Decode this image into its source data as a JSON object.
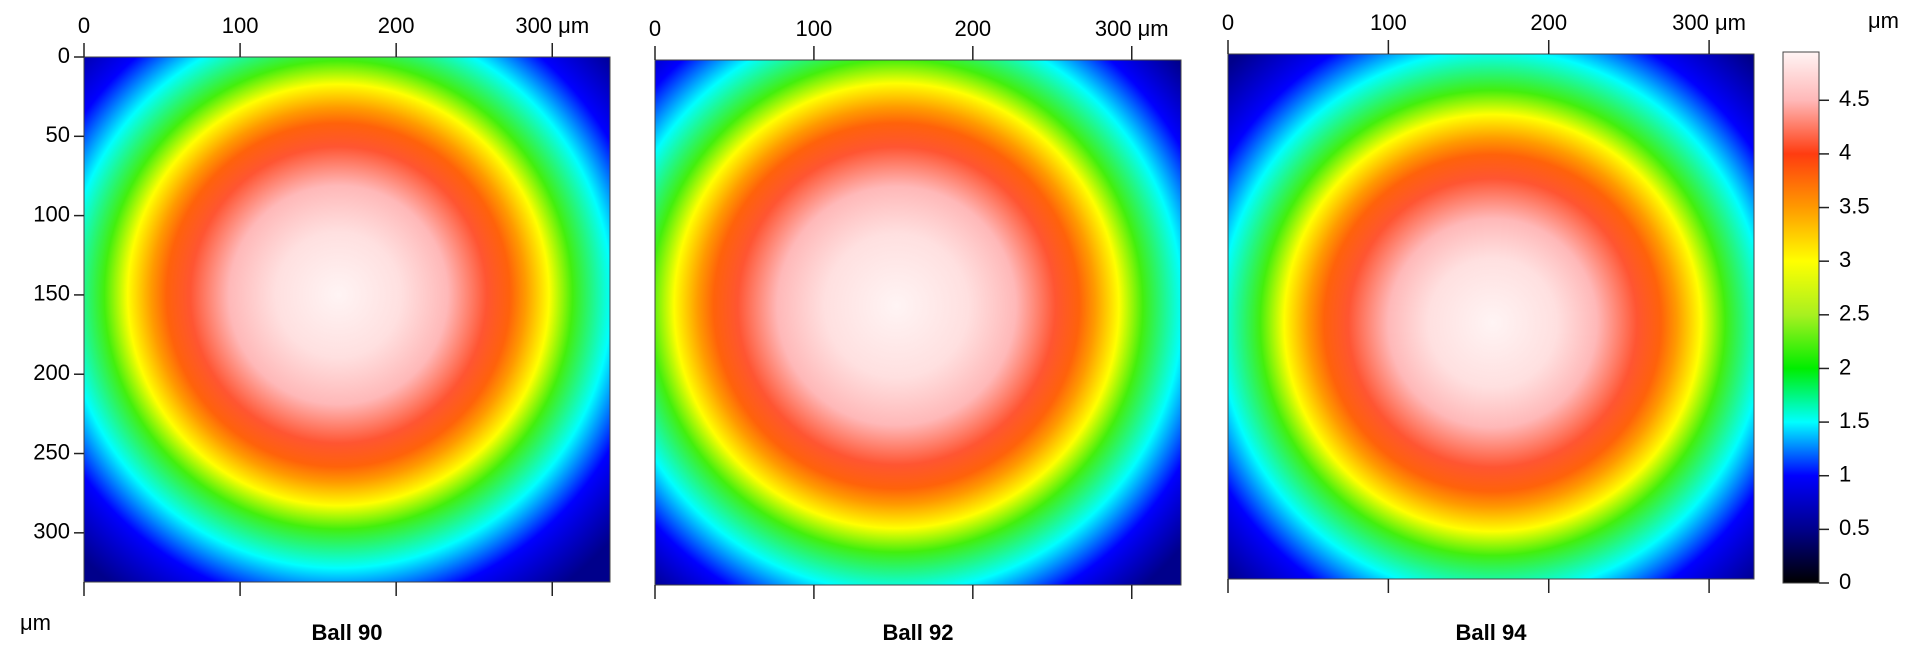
{
  "chart_data": [
    {
      "type": "heatmap",
      "title": "Ball 90",
      "ylabel": "μm",
      "xlim": [
        0,
        337
      ],
      "ylim": [
        0,
        331
      ],
      "xticks": [
        0,
        100,
        200,
        {
          "value": 300,
          "label": "300 μm"
        }
      ],
      "yticks": [
        0,
        50,
        100,
        150,
        200,
        250,
        300
      ],
      "center": [
        163,
        150
      ],
      "r": [
        0,
        40,
        70,
        95,
        110,
        120,
        135,
        150,
        175,
        200,
        235
      ],
      "values": [
        4.95,
        4.8,
        4.5,
        4.1,
        3.8,
        3.5,
        3.0,
        2.2,
        1.5,
        1.0,
        0.5
      ]
    },
    {
      "type": "heatmap",
      "title": "Ball 92",
      "xlim": [
        0,
        331
      ],
      "ylim": [
        0,
        331
      ],
      "xticks": [
        0,
        100,
        200,
        {
          "value": 300,
          "label": "300 μm"
        }
      ],
      "center": [
        152,
        155
      ],
      "r": [
        0,
        45,
        75,
        100,
        115,
        125,
        140,
        155,
        180,
        205,
        235
      ],
      "values": [
        4.95,
        4.8,
        4.5,
        4.1,
        3.8,
        3.5,
        3.0,
        2.2,
        1.5,
        1.0,
        0.5
      ]
    },
    {
      "type": "heatmap",
      "title": "Ball 94",
      "xlim": [
        0,
        328
      ],
      "ylim": [
        0,
        328
      ],
      "xticks": [
        0,
        100,
        200,
        {
          "value": 300,
          "label": "300 μm"
        }
      ],
      "center": [
        165,
        168
      ],
      "r": [
        0,
        40,
        65,
        90,
        105,
        115,
        130,
        145,
        170,
        195,
        230
      ],
      "values": [
        4.95,
        4.8,
        4.5,
        4.1,
        3.8,
        3.5,
        3.0,
        2.2,
        1.5,
        1.0,
        0.5
      ]
    }
  ],
  "colorbar": {
    "title": "μm",
    "lim": [
      0,
      4.95
    ],
    "ticks": [
      0,
      0.5,
      1,
      1.5,
      2,
      2.5,
      3,
      3.5,
      4,
      4.5
    ],
    "colorscale": [
      [
        0,
        "#000000"
      ],
      [
        0.5,
        "#00008b"
      ],
      [
        1,
        "#0000ff"
      ],
      [
        1.5,
        "#00ffff"
      ],
      [
        2,
        "#00ee00"
      ],
      [
        2.5,
        "#a8f020"
      ],
      [
        3,
        "#ffff00"
      ],
      [
        3.5,
        "#ff9a00"
      ],
      [
        4,
        "#ff3c10"
      ],
      [
        4.5,
        "#ffb8b8"
      ],
      [
        4.95,
        "#fff4f4"
      ]
    ]
  }
}
